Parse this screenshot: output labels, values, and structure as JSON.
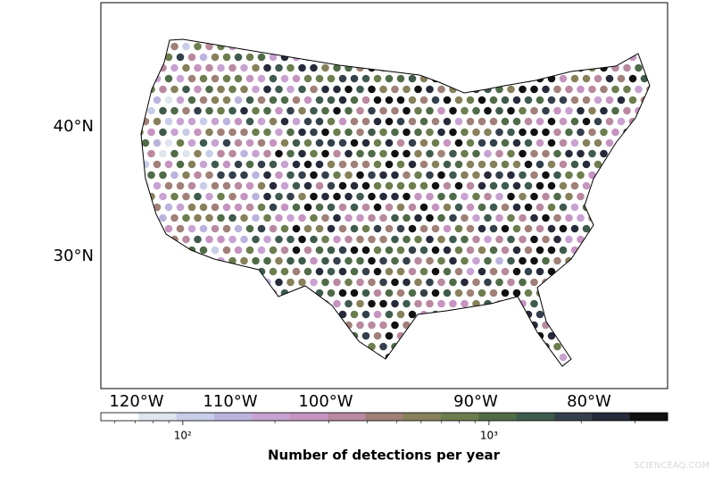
{
  "map": {
    "lat_labels": [
      "40°N",
      "30°N"
    ],
    "lon_labels": [
      "120°W",
      "110°W",
      "100°W",
      "90°W",
      "80°W"
    ],
    "colorbar": {
      "label": "Number of detections per year",
      "log": true,
      "lim": [
        54,
        3830
      ],
      "ticks": [
        {
          "value": 100,
          "label": "10²"
        },
        {
          "value": 1000,
          "label": "10³"
        }
      ],
      "colors": [
        "#ffffff",
        "#dfe5ef",
        "#c8cde8",
        "#bcb3de",
        "#c8a2d2",
        "#c594c0",
        "#b9899f",
        "#a08078",
        "#87805a",
        "#6c7d4e",
        "#506b48",
        "#3f5b4d",
        "#34404b",
        "#272a3a",
        "#111111"
      ]
    },
    "watermark": "SCIENCEAQ.COM"
  }
}
